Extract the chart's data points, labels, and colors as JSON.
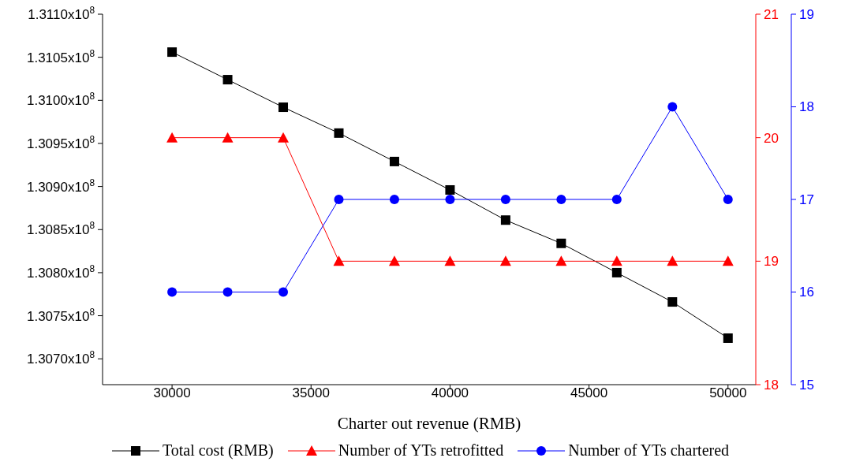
{
  "chart_data": {
    "type": "line",
    "xlabel": "Charter out revenue (RMB)",
    "x": [
      30000,
      32000,
      34000,
      36000,
      38000,
      40000,
      42000,
      44000,
      46000,
      48000,
      50000
    ],
    "series": [
      {
        "name": "Total cost (RMB)",
        "color": "#000000",
        "marker": "square",
        "values": [
          131056000,
          131024000,
          130992000,
          130962000,
          130929000,
          130896000,
          130861000,
          130834000,
          130800000,
          130766000,
          130724000
        ]
      },
      {
        "name": "Number of YTs retrofitted",
        "color": "#ff0000",
        "marker": "triangle",
        "axis": "y2",
        "values": [
          20,
          20,
          20,
          19,
          19,
          19,
          19,
          19,
          19,
          19,
          19
        ]
      },
      {
        "name": "Number of YTs chartered",
        "color": "#0000ff",
        "marker": "circle",
        "axis": "y3",
        "values": [
          16,
          16,
          16,
          17,
          17,
          17,
          17,
          17,
          17,
          18,
          17
        ]
      }
    ],
    "xlim": [
      27500,
      51000
    ],
    "xticks": [
      30000,
      35000,
      40000,
      45000,
      50000
    ],
    "ylim": [
      130670000,
      131100000
    ],
    "yticks": [
      {
        "value": 130700000,
        "label": "1.3070x10$^{8}$"
      },
      {
        "value": 130750000,
        "label": "1.3075x10$^{8}$"
      },
      {
        "value": 130800000,
        "label": "1.3080x10$^{8}$"
      },
      {
        "value": 130850000,
        "label": "1.3085x10$^{8}$"
      },
      {
        "value": 130900000,
        "label": "1.3090x10$^{8}$"
      },
      {
        "value": 130950000,
        "label": "1.3095x10$^{8}$"
      },
      {
        "value": 131000000,
        "label": "1.3100x10$^{8}$"
      },
      {
        "value": 131050000,
        "label": "1.3105x10$^{8}$"
      },
      {
        "value": 131100000,
        "label": "1.3110x10$^{8}$"
      }
    ],
    "y2lim": [
      18,
      21
    ],
    "y2ticks": [
      18,
      19,
      20,
      21
    ],
    "y3lim": [
      15,
      19
    ],
    "y3ticks": [
      15,
      16,
      17,
      18,
      19
    ],
    "legend": "bottom",
    "grid": false,
    "line_style": "solid"
  }
}
